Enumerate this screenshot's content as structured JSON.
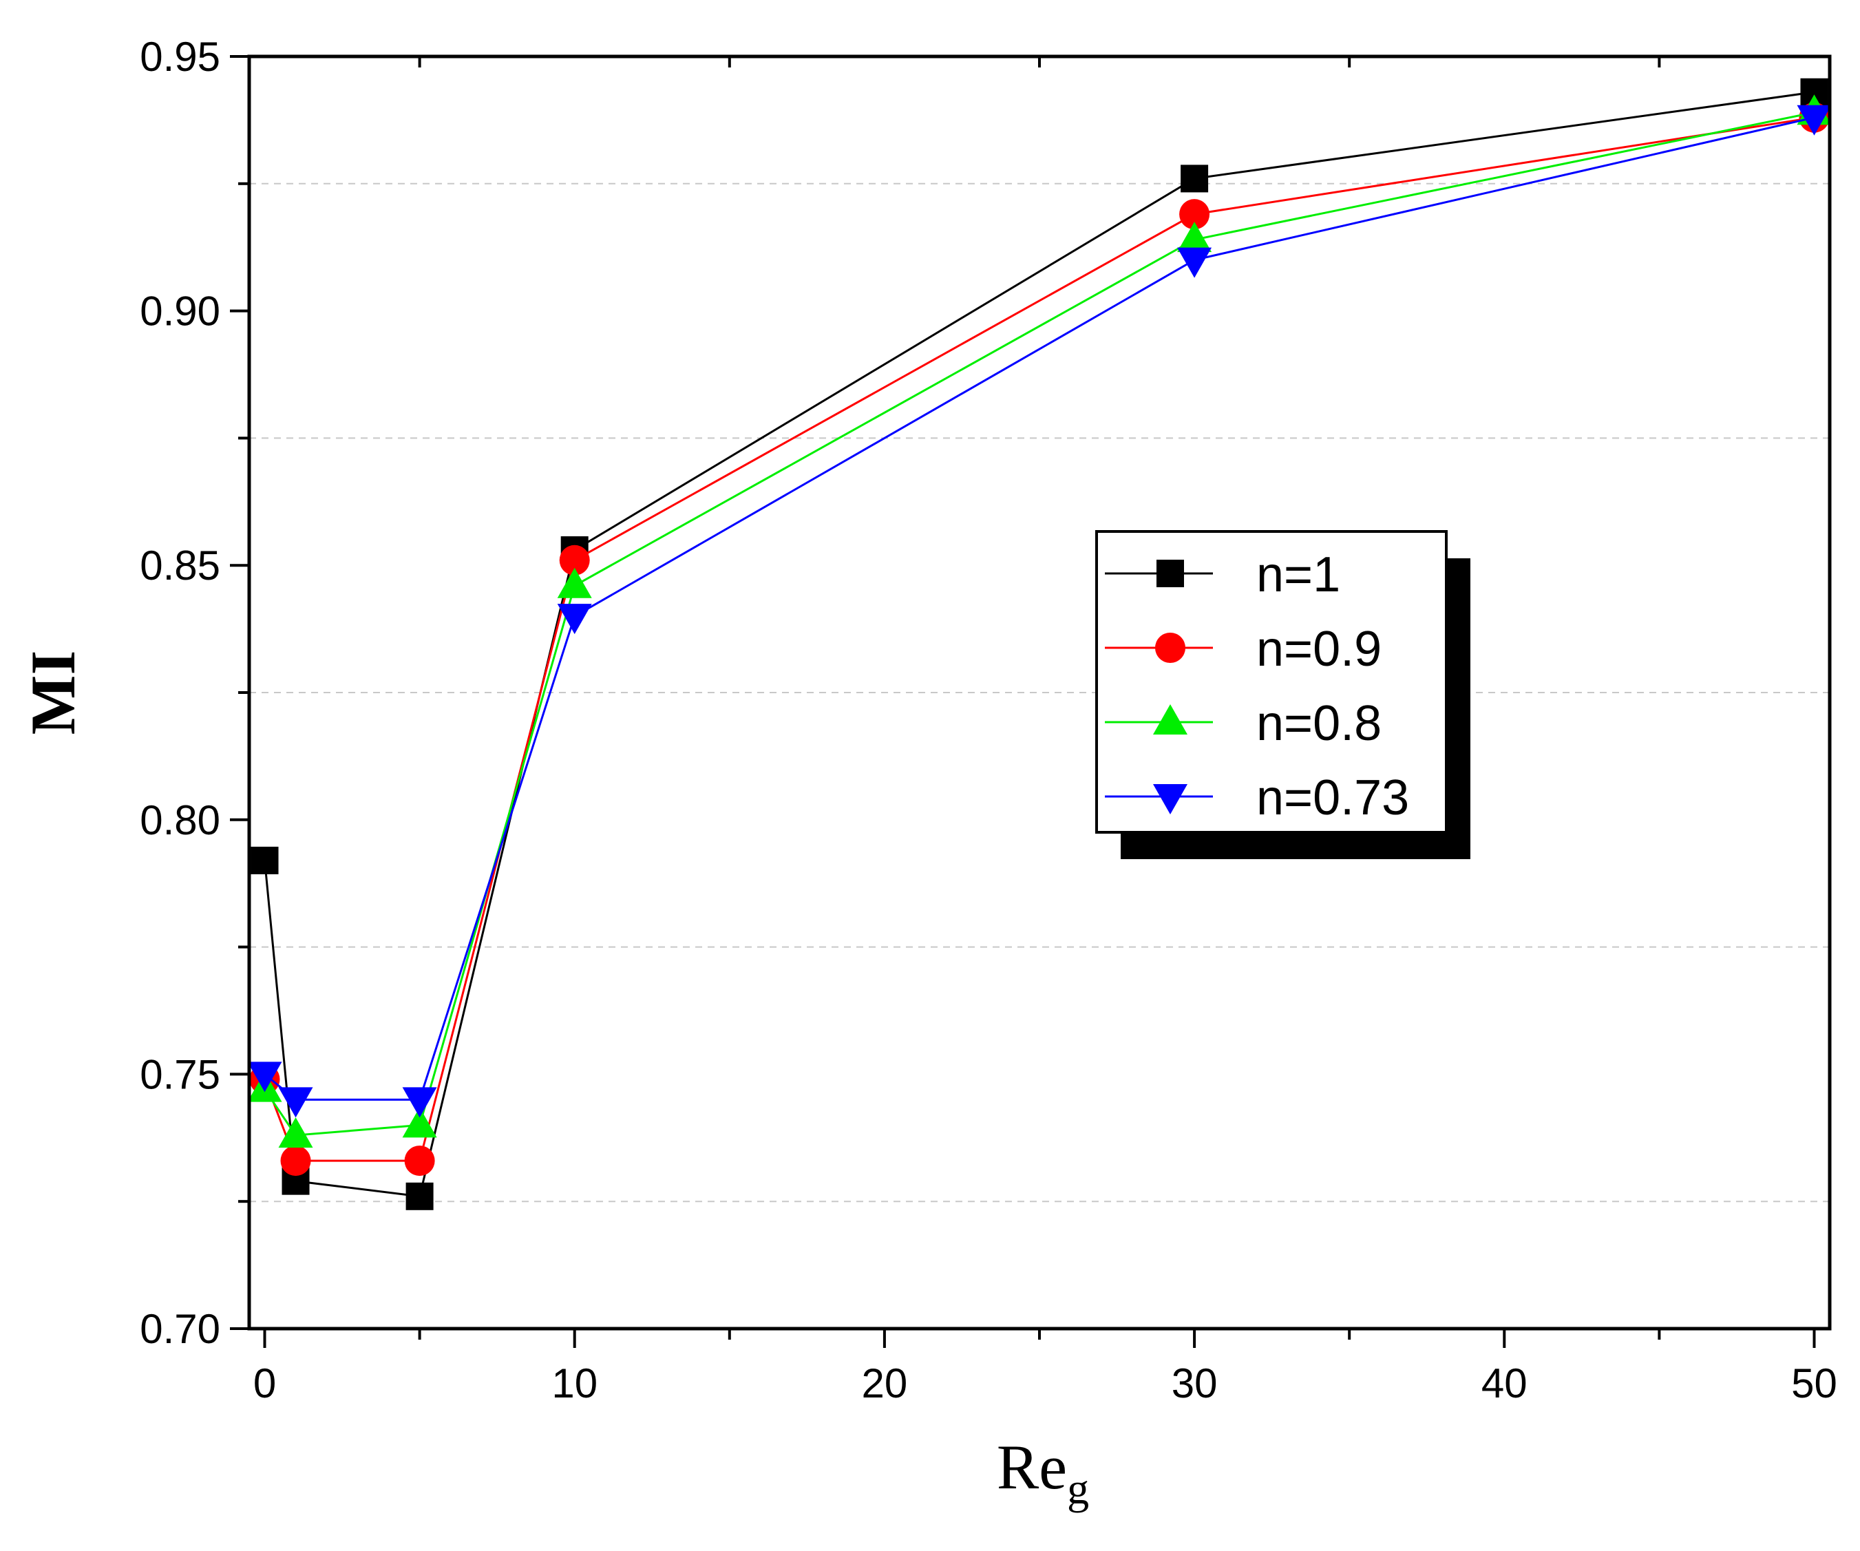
{
  "chart_data": {
    "type": "line",
    "title": "",
    "xlabel": "Re",
    "xlabel_subscript": "g",
    "ylabel": "MI",
    "xlim": [
      -0.5,
      50.5
    ],
    "ylim": [
      0.7,
      0.95
    ],
    "x_ticks": [
      0,
      10,
      20,
      30,
      40,
      50
    ],
    "x_tick_labels": [
      "0",
      "10",
      "20",
      "30",
      "40",
      "50"
    ],
    "y_ticks": [
      0.7,
      0.75,
      0.8,
      0.85,
      0.9,
      0.95
    ],
    "y_tick_labels": [
      "0.70",
      "0.75",
      "0.80",
      "0.85",
      "0.90",
      "0.95"
    ],
    "grid": "horizontal dashed at minor y ticks",
    "legend_position": "center-right",
    "x": [
      0,
      1,
      5,
      10,
      30,
      50
    ],
    "series": [
      {
        "name": "n=1",
        "color": "#000000",
        "marker": "square",
        "values": [
          0.792,
          0.729,
          0.726,
          0.853,
          0.926,
          0.943
        ]
      },
      {
        "name": "n=0.9",
        "color": "#ff0000",
        "marker": "circle",
        "values": [
          0.749,
          0.733,
          0.733,
          0.851,
          0.919,
          0.938
        ]
      },
      {
        "name": "n=0.8",
        "color": "#00ee00",
        "marker": "triangle-up",
        "values": [
          0.747,
          0.738,
          0.74,
          0.846,
          0.914,
          0.939
        ]
      },
      {
        "name": "n=0.73",
        "color": "#0000ff",
        "marker": "triangle-down",
        "values": [
          0.75,
          0.745,
          0.745,
          0.84,
          0.91,
          0.938
        ]
      }
    ]
  }
}
